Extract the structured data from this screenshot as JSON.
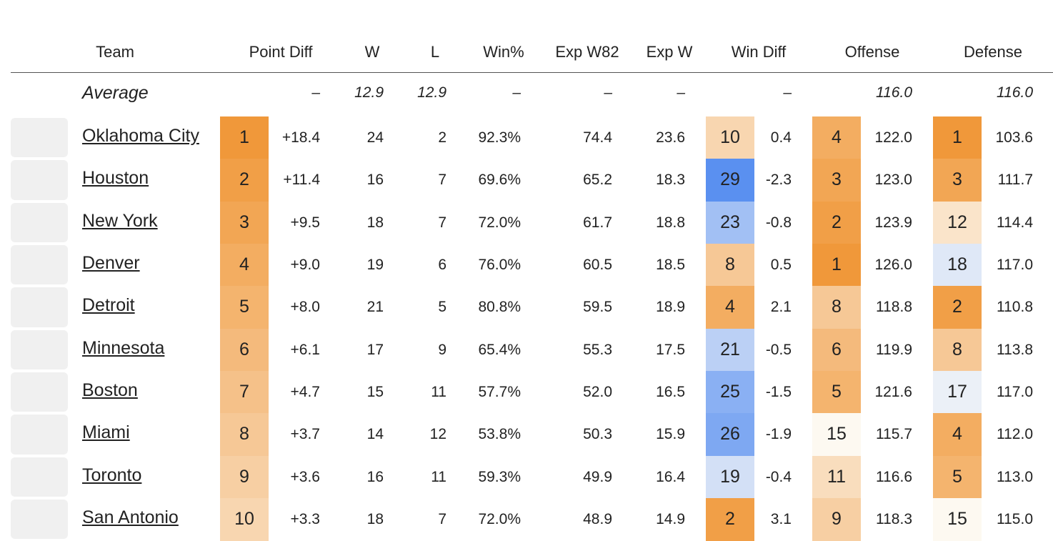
{
  "table": {
    "columns": [
      "Team",
      "Point Diff",
      "W",
      "L",
      "Win%",
      "Exp W82",
      "Exp W",
      "Win Diff",
      "Offense",
      "Defense"
    ],
    "average": {
      "label": "Average",
      "point_diff": "–",
      "w": "12.9",
      "l": "12.9",
      "win_pct": "–",
      "exp_w82": "–",
      "exp_w": "–",
      "win_diff": "–",
      "off": "116.0",
      "def": "116.0"
    },
    "rows": [
      {
        "team": "Oklahoma City",
        "pd_rank": 1,
        "point_diff": "+18.4",
        "w": "24",
        "l": "2",
        "win_pct": "92.3%",
        "exp_w82": "74.4",
        "exp_w": "23.6",
        "wd_rank": 10,
        "win_diff": "0.4",
        "off_rank": 4,
        "off": "122.0",
        "def_rank": 1,
        "def": "103.6"
      },
      {
        "team": "Houston",
        "pd_rank": 2,
        "point_diff": "+11.4",
        "w": "16",
        "l": "7",
        "win_pct": "69.6%",
        "exp_w82": "65.2",
        "exp_w": "18.3",
        "wd_rank": 29,
        "win_diff": "-2.3",
        "off_rank": 3,
        "off": "123.0",
        "def_rank": 3,
        "def": "111.7"
      },
      {
        "team": "New York",
        "pd_rank": 3,
        "point_diff": "+9.5",
        "w": "18",
        "l": "7",
        "win_pct": "72.0%",
        "exp_w82": "61.7",
        "exp_w": "18.8",
        "wd_rank": 23,
        "win_diff": "-0.8",
        "off_rank": 2,
        "off": "123.9",
        "def_rank": 12,
        "def": "114.4"
      },
      {
        "team": "Denver",
        "pd_rank": 4,
        "point_diff": "+9.0",
        "w": "19",
        "l": "6",
        "win_pct": "76.0%",
        "exp_w82": "60.5",
        "exp_w": "18.5",
        "wd_rank": 8,
        "win_diff": "0.5",
        "off_rank": 1,
        "off": "126.0",
        "def_rank": 18,
        "def": "117.0"
      },
      {
        "team": "Detroit",
        "pd_rank": 5,
        "point_diff": "+8.0",
        "w": "21",
        "l": "5",
        "win_pct": "80.8%",
        "exp_w82": "59.5",
        "exp_w": "18.9",
        "wd_rank": 4,
        "win_diff": "2.1",
        "off_rank": 8,
        "off": "118.8",
        "def_rank": 2,
        "def": "110.8"
      },
      {
        "team": "Minnesota",
        "pd_rank": 6,
        "point_diff": "+6.1",
        "w": "17",
        "l": "9",
        "win_pct": "65.4%",
        "exp_w82": "55.3",
        "exp_w": "17.5",
        "wd_rank": 21,
        "win_diff": "-0.5",
        "off_rank": 6,
        "off": "119.9",
        "def_rank": 8,
        "def": "113.8"
      },
      {
        "team": "Boston",
        "pd_rank": 7,
        "point_diff": "+4.7",
        "w": "15",
        "l": "11",
        "win_pct": "57.7%",
        "exp_w82": "52.0",
        "exp_w": "16.5",
        "wd_rank": 25,
        "win_diff": "-1.5",
        "off_rank": 5,
        "off": "121.6",
        "def_rank": 17,
        "def": "117.0"
      },
      {
        "team": "Miami",
        "pd_rank": 8,
        "point_diff": "+3.7",
        "w": "14",
        "l": "12",
        "win_pct": "53.8%",
        "exp_w82": "50.3",
        "exp_w": "15.9",
        "wd_rank": 26,
        "win_diff": "-1.9",
        "off_rank": 15,
        "off": "115.7",
        "def_rank": 4,
        "def": "112.0"
      },
      {
        "team": "Toronto",
        "pd_rank": 9,
        "point_diff": "+3.6",
        "w": "16",
        "l": "11",
        "win_pct": "59.3%",
        "exp_w82": "49.9",
        "exp_w": "16.4",
        "wd_rank": 19,
        "win_diff": "-0.4",
        "off_rank": 11,
        "off": "116.6",
        "def_rank": 5,
        "def": "113.0"
      },
      {
        "team": "San Antonio",
        "pd_rank": 10,
        "point_diff": "+3.3",
        "w": "18",
        "l": "7",
        "win_pct": "72.0%",
        "exp_w82": "48.9",
        "exp_w": "14.9",
        "wd_rank": 2,
        "win_diff": "3.1",
        "off_rank": 9,
        "off": "118.3",
        "def_rank": 15,
        "def": "115.0"
      }
    ]
  }
}
